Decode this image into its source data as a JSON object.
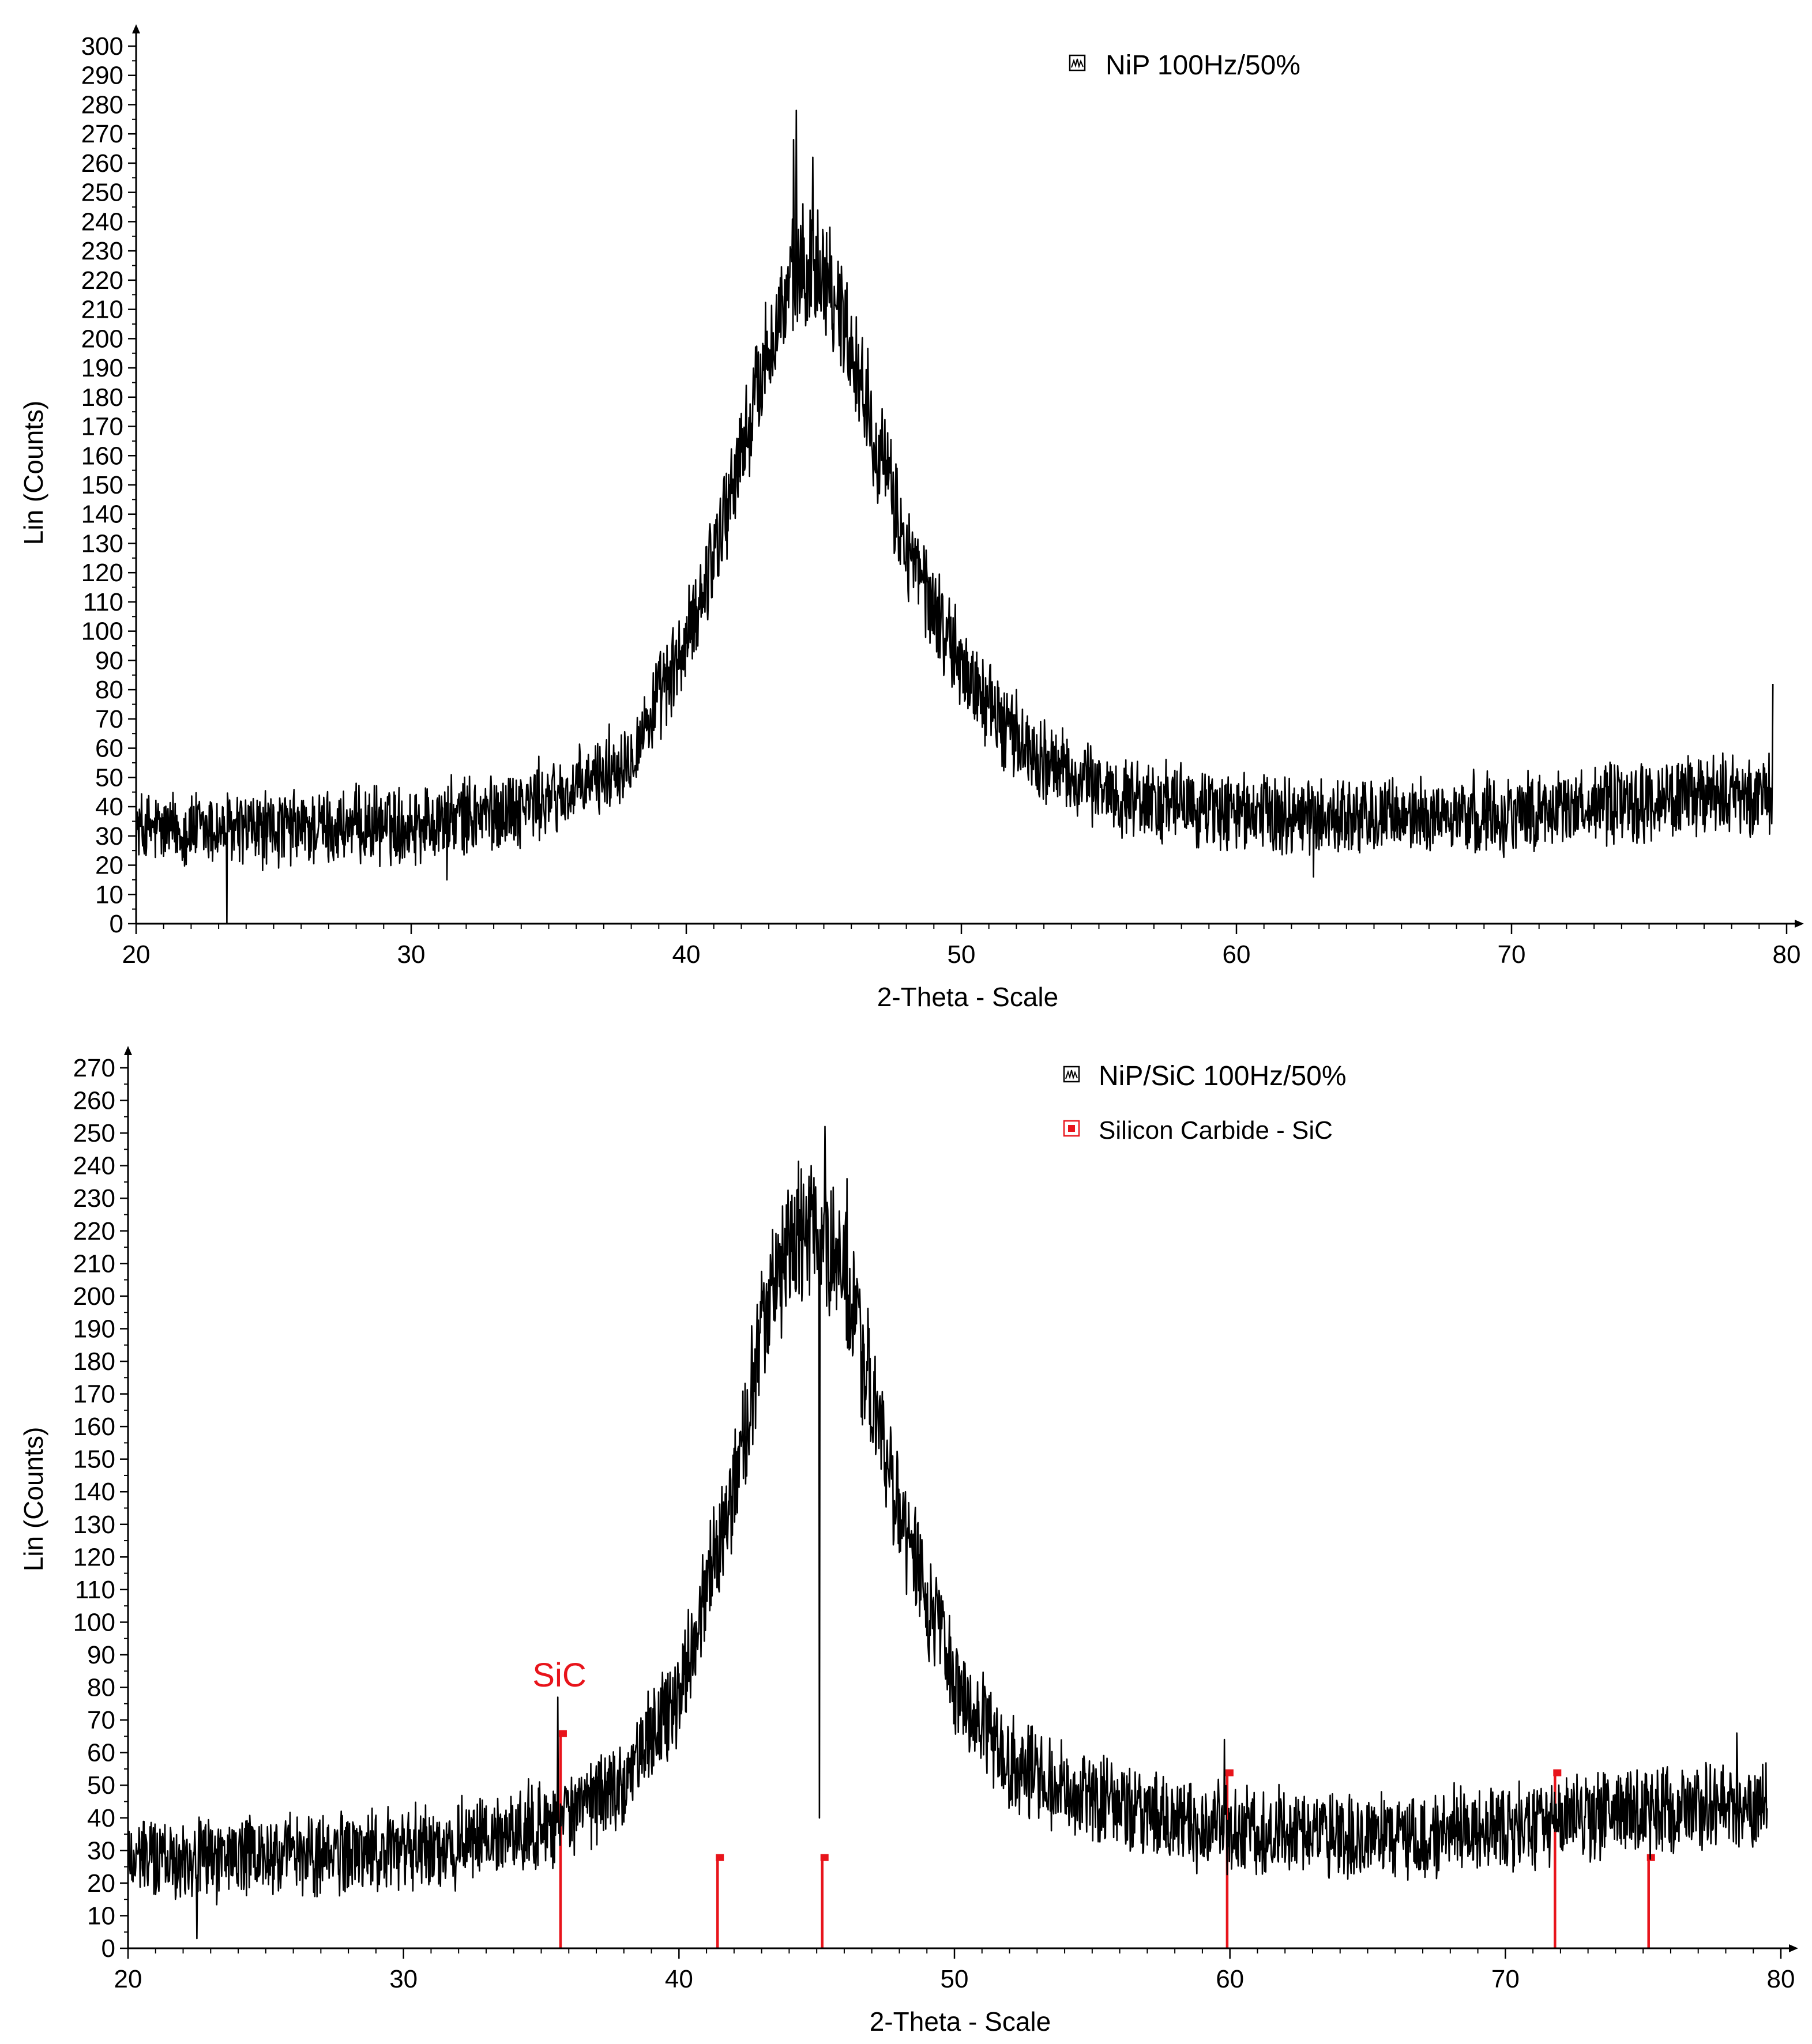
{
  "colors": {
    "pattern": "#000000",
    "reference": "#e8141b",
    "axis": "#000000",
    "background": "#ffffff"
  },
  "chart_data": [
    {
      "type": "line",
      "title": "",
      "xlabel": "2-Theta - Scale",
      "ylabel": "Lin (Counts)",
      "xlim": [
        20,
        80
      ],
      "ylim": [
        0,
        300
      ],
      "x_ticks": [
        20,
        30,
        40,
        50,
        60,
        70,
        80
      ],
      "y_ticks": [
        0,
        10,
        20,
        30,
        40,
        50,
        60,
        70,
        80,
        90,
        100,
        110,
        120,
        130,
        140,
        150,
        160,
        170,
        180,
        190,
        200,
        210,
        220,
        230,
        240,
        250,
        260,
        270,
        280,
        290,
        300
      ],
      "legend": [
        {
          "label": "NiP 100Hz/50%",
          "icon": "scan-pattern-icon",
          "color": "#000000"
        }
      ],
      "series": [
        {
          "name": "NiP 100Hz/50%",
          "color": "#000000",
          "envelope": {
            "x": [
              20,
              25,
              30,
              33,
              36,
              38,
              40,
              42,
              43,
              44,
              45,
              46,
              47,
              48,
              50,
              52,
              54,
              56,
              60,
              65,
              70,
              75,
              80
            ],
            "y": [
              32,
              32,
              34,
              38,
              45,
              58,
              95,
              160,
              198,
              222,
              225,
              198,
              162,
              128,
              88,
              62,
              50,
              43,
              38,
              36,
              38,
              42,
              45
            ]
          },
          "noise_amplitude": 10,
          "x_step": 0.02,
          "spikes": [
            {
              "x": 23.3,
              "y": 0
            },
            {
              "x": 44.0,
              "y": 278
            },
            {
              "x": 43.9,
              "y": 268
            },
            {
              "x": 44.6,
              "y": 262
            },
            {
              "x": 79.9,
              "y": 82
            },
            {
              "x": 52.0,
              "y": 80
            },
            {
              "x": 31.3,
              "y": 15
            },
            {
              "x": 62.8,
              "y": 16
            }
          ]
        }
      ],
      "reference_lines": []
    },
    {
      "type": "line",
      "title": "",
      "xlabel": "2-Theta - Scale",
      "ylabel": "Lin (Counts)",
      "xlim": [
        20,
        80
      ],
      "ylim": [
        0,
        270
      ],
      "x_ticks": [
        20,
        30,
        40,
        50,
        60,
        70,
        80
      ],
      "y_ticks": [
        0,
        10,
        20,
        30,
        40,
        50,
        60,
        70,
        80,
        90,
        100,
        110,
        120,
        130,
        140,
        150,
        160,
        170,
        180,
        190,
        200,
        210,
        220,
        230,
        240,
        250,
        260,
        270
      ],
      "legend": [
        {
          "label": "NiP/SiC 100Hz/50%",
          "icon": "scan-pattern-icon",
          "color": "#000000"
        },
        {
          "label": "Silicon Carbide - SiC",
          "icon": "reference-marker-icon",
          "color": "#e8141b"
        }
      ],
      "series": [
        {
          "name": "NiP/SiC 100Hz/50%",
          "color": "#000000",
          "envelope": {
            "x": [
              20,
              25,
              30,
              33,
              36,
              38,
              40,
              42,
              43,
              44,
              45,
              46,
              47,
              48,
              50,
              52,
              54,
              56,
              60,
              65,
              70,
              75,
              80
            ],
            "y": [
              28,
              28,
              30,
              33,
              40,
              52,
              78,
              140,
              190,
              215,
              222,
              205,
              170,
              132,
              82,
              58,
              48,
              43,
              36,
              34,
              37,
              42,
              45
            ]
          },
          "noise_amplitude": 10,
          "x_step": 0.02,
          "spikes": [
            {
              "x": 45.3,
              "y": 252
            },
            {
              "x": 44.8,
              "y": 240
            },
            {
              "x": 46.1,
              "y": 236
            },
            {
              "x": 35.6,
              "y": 77
            },
            {
              "x": 59.8,
              "y": 64
            },
            {
              "x": 78.4,
              "y": 66
            },
            {
              "x": 22.5,
              "y": 3
            },
            {
              "x": 45.1,
              "y": 40
            }
          ]
        }
      ],
      "reference_lines": {
        "name": "Silicon Carbide - SiC",
        "color": "#e8141b",
        "positions": [
          35.7,
          41.4,
          45.2,
          59.9,
          71.8,
          75.2
        ],
        "heights": [
          66,
          28,
          28,
          54,
          54,
          28
        ]
      },
      "annotations": [
        {
          "text": "SiC",
          "x": 35.5,
          "y": 78,
          "color": "#e8141b"
        }
      ]
    }
  ]
}
